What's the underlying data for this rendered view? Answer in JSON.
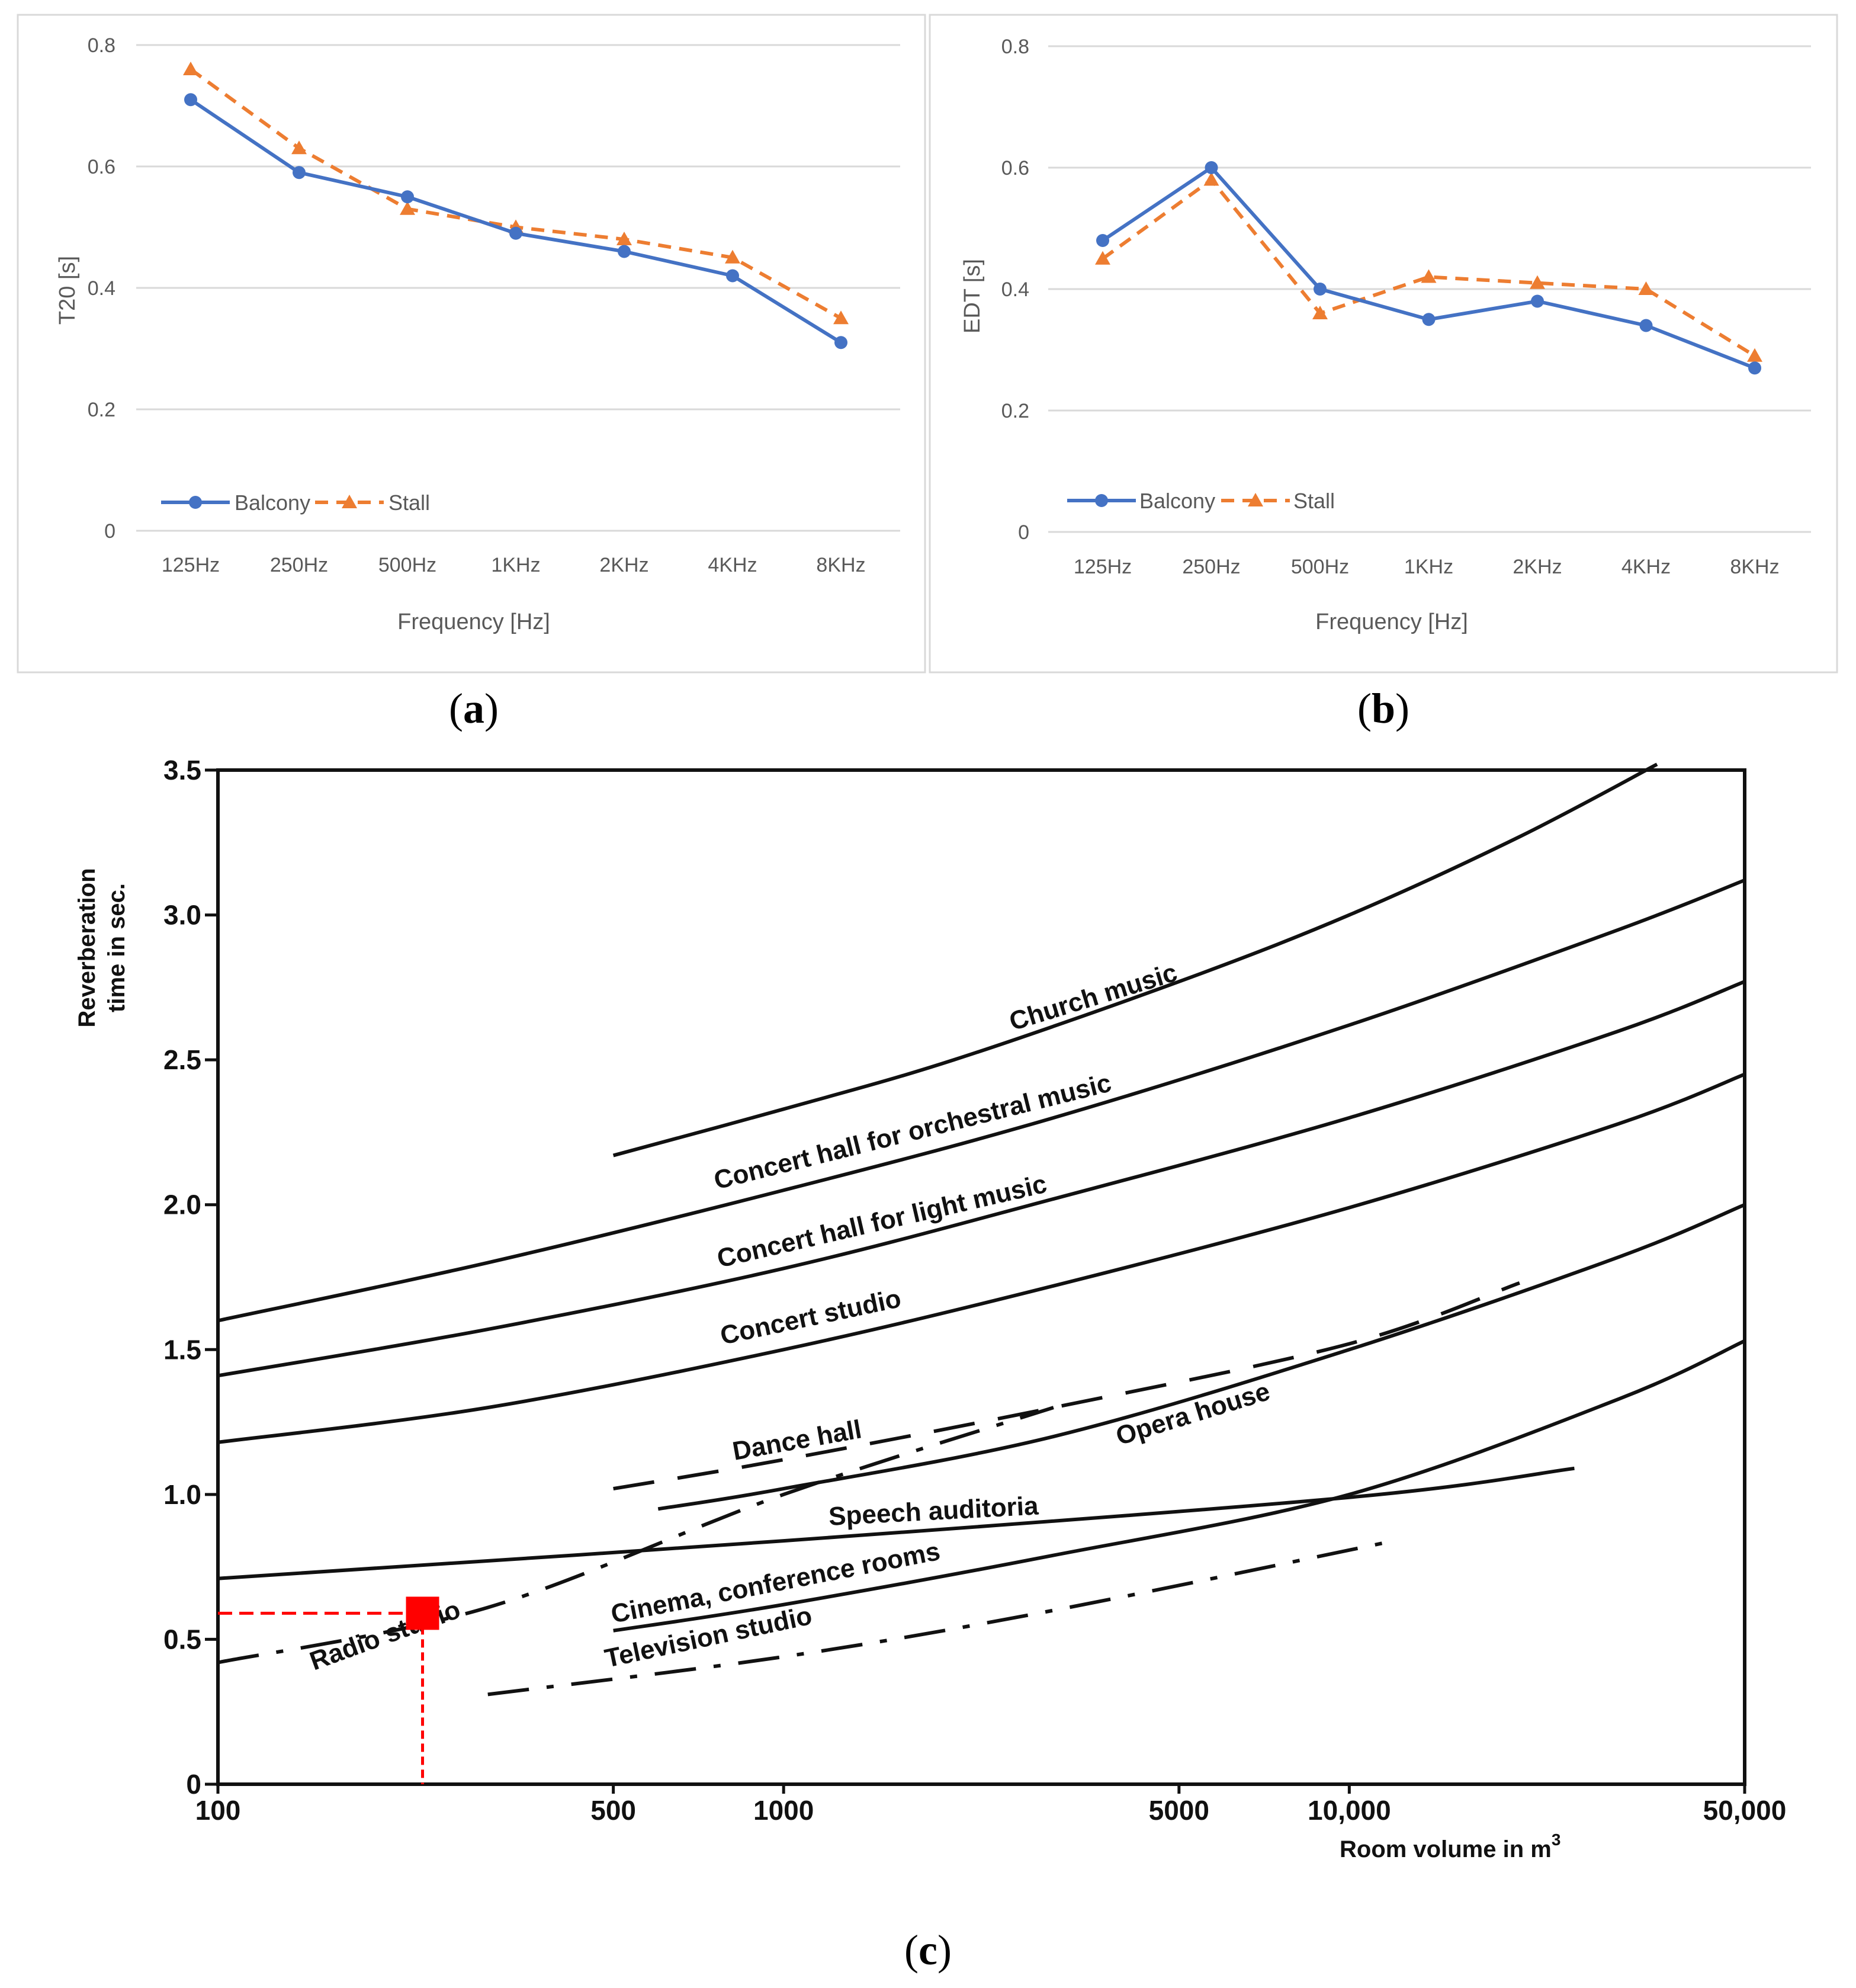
{
  "captions": {
    "a": "a",
    "b": "b",
    "c": "c"
  },
  "legend": {
    "balcony": "Balcony",
    "stall": "Stall"
  },
  "colors": {
    "balcony": "#4472C4",
    "stall": "#ED7D31",
    "marker": "#FF0000",
    "ink": "#111111",
    "grid": "#D9D9D9"
  },
  "chart_data": [
    {
      "id": "a",
      "type": "line",
      "categories": [
        "125Hz",
        "250Hz",
        "500Hz",
        "1KHz",
        "2KHz",
        "4KHz",
        "8KHz"
      ],
      "series": [
        {
          "name": "Balcony",
          "values": [
            0.71,
            0.59,
            0.55,
            0.49,
            0.46,
            0.42,
            0.31
          ]
        },
        {
          "name": "Stall",
          "values": [
            0.76,
            0.63,
            0.53,
            0.5,
            0.48,
            0.45,
            0.35
          ]
        }
      ],
      "xlabel": "Frequency [Hz]",
      "ylabel": "T20 [s]",
      "ylim": [
        0,
        0.8
      ],
      "yticks": [
        "0",
        "0.2",
        "0.4",
        "0.6",
        "0.8"
      ],
      "grid": true,
      "legend_position": "bottom-left"
    },
    {
      "id": "b",
      "type": "line",
      "categories": [
        "125Hz",
        "250Hz",
        "500Hz",
        "1KHz",
        "2KHz",
        "4KHz",
        "8KHz"
      ],
      "series": [
        {
          "name": "Balcony",
          "values": [
            0.48,
            0.6,
            0.4,
            0.35,
            0.38,
            0.34,
            0.27
          ]
        },
        {
          "name": "Stall",
          "values": [
            0.45,
            0.58,
            0.36,
            0.42,
            0.41,
            0.4,
            0.29
          ]
        }
      ],
      "xlabel": "Frequency [Hz]",
      "ylabel": "EDT [s]",
      "ylim": [
        0,
        0.8
      ],
      "yticks": [
        "0",
        "0.2",
        "0.4",
        "0.6",
        "0.8"
      ],
      "grid": true,
      "legend_position": "bottom-left"
    },
    {
      "id": "c",
      "type": "line",
      "x_scale": "log",
      "xlim": [
        100,
        50000
      ],
      "ylim": [
        0,
        3.5
      ],
      "xticks": [
        {
          "value": 100,
          "label": "100"
        },
        {
          "value": 500,
          "label": "500"
        },
        {
          "value": 1000,
          "label": "1000"
        },
        {
          "value": 5000,
          "label": "5000"
        },
        {
          "value": 10000,
          "label": "10,000"
        },
        {
          "value": 50000,
          "label": "50,000"
        }
      ],
      "yticks": [
        "0",
        "0.5",
        "1.0",
        "1.5",
        "2.0",
        "2.5",
        "3.0",
        "3.5"
      ],
      "xlabel": "Room volume in m",
      "xlabel_sup": "3",
      "ylabel_lines": [
        "Reverberation",
        "time in sec."
      ],
      "series": [
        {
          "name": "Church music",
          "style": "solid",
          "x": [
            500,
            1000,
            2000,
            5000,
            10000,
            20000,
            35000
          ],
          "y": [
            2.17,
            2.33,
            2.5,
            2.77,
            3.0,
            3.27,
            3.52
          ]
        },
        {
          "name": "Concert hall for orchestral music",
          "style": "solid",
          "x": [
            100,
            300,
            1000,
            3000,
            10000,
            30000,
            50000
          ],
          "y": [
            1.6,
            1.8,
            2.05,
            2.3,
            2.62,
            2.95,
            3.12
          ]
        },
        {
          "name": "Concert hall for light music",
          "style": "solid",
          "x": [
            100,
            300,
            1000,
            3000,
            10000,
            30000,
            50000
          ],
          "y": [
            1.41,
            1.57,
            1.78,
            2.02,
            2.3,
            2.6,
            2.77
          ]
        },
        {
          "name": "Concert studio",
          "style": "solid",
          "x": [
            100,
            300,
            1000,
            3000,
            10000,
            30000,
            50000
          ],
          "y": [
            1.18,
            1.3,
            1.5,
            1.72,
            1.99,
            2.28,
            2.45
          ]
        },
        {
          "name": "Dance hall",
          "style": "dash",
          "x": [
            500,
            1000,
            3000,
            10000,
            20000
          ],
          "y": [
            1.02,
            1.12,
            1.3,
            1.52,
            1.73
          ]
        },
        {
          "name": "Opera house",
          "style": "solid",
          "x": [
            600,
            1000,
            3000,
            10000,
            30000,
            50000
          ],
          "y": [
            0.95,
            1.02,
            1.2,
            1.5,
            1.82,
            2.0
          ]
        },
        {
          "name": "Speech auditoria",
          "style": "solid",
          "x": [
            100,
            1000,
            10000,
            25000
          ],
          "y": [
            0.71,
            0.84,
            0.99,
            1.09
          ]
        },
        {
          "name": "Cinema, conference rooms",
          "style": "solid",
          "x": [
            500,
            1000,
            3000,
            10000,
            30000,
            50000
          ],
          "y": [
            0.53,
            0.62,
            0.79,
            1.0,
            1.33,
            1.53
          ]
        },
        {
          "name": "Television studio",
          "style": "dashdot",
          "x": [
            300,
            1000,
            3000,
            12000
          ],
          "y": [
            0.31,
            0.44,
            0.6,
            0.84
          ]
        },
        {
          "name": "Radio studio",
          "style": "dashdot",
          "x": [
            100,
            300,
            1000,
            3000
          ],
          "y": [
            0.42,
            0.61,
            1.0,
            1.3
          ]
        }
      ],
      "highlight": {
        "x": 230,
        "y": 0.59
      }
    }
  ]
}
